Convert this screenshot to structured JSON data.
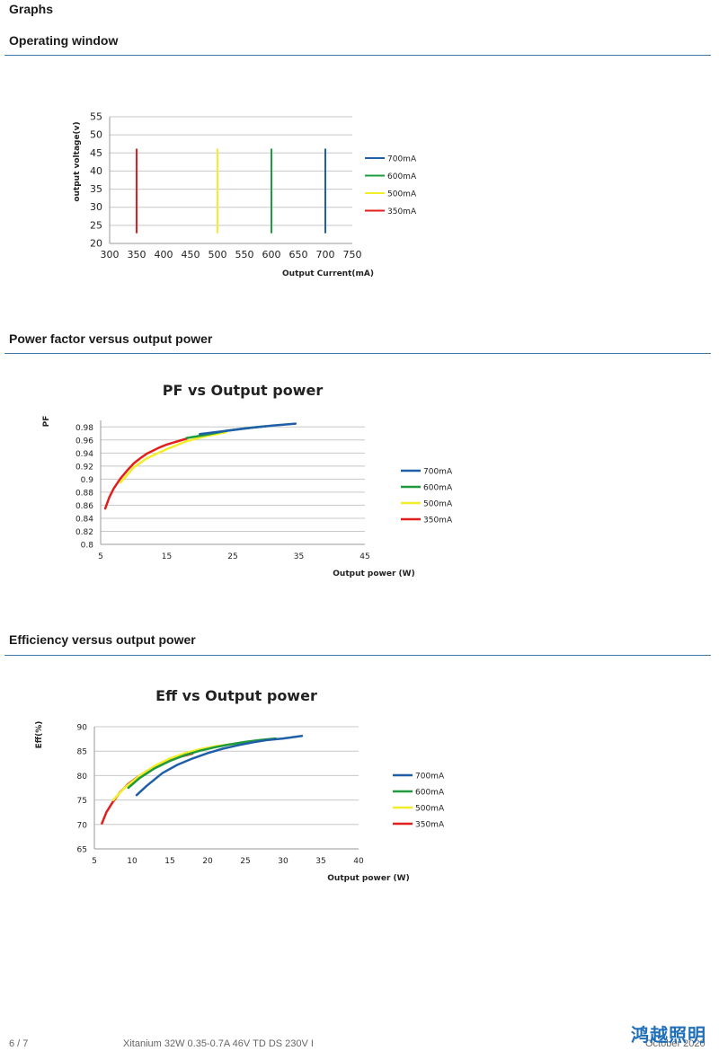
{
  "page": {
    "heading": "Graphs"
  },
  "sections": [
    {
      "title": "Operating window"
    },
    {
      "title": "Power factor versus output power"
    },
    {
      "title": "Efficiency versus output power"
    }
  ],
  "chart_data": [
    {
      "type": "line",
      "title": "",
      "xlabel": "Output Current(mA)",
      "ylabel": "output voltage(v)",
      "xlim": [
        300,
        750
      ],
      "ylim": [
        20,
        55
      ],
      "xticks": [
        300,
        350,
        400,
        450,
        500,
        550,
        600,
        650,
        700,
        750
      ],
      "yticks": [
        20,
        25,
        30,
        35,
        40,
        45,
        50,
        55
      ],
      "grid": true,
      "legend": "right",
      "series": [
        {
          "name": "700mA",
          "color": "#1f5fa8",
          "x": [
            700,
            700
          ],
          "y": [
            23,
            46
          ]
        },
        {
          "name": "600mA",
          "color": "#1f9a3c",
          "x": [
            600,
            600
          ],
          "y": [
            23,
            46
          ]
        },
        {
          "name": "500mA",
          "color": "#f2ee2a",
          "x": [
            500,
            500
          ],
          "y": [
            23,
            46
          ]
        },
        {
          "name": "350mA",
          "color": "#e0201c",
          "x": [
            350,
            350
          ],
          "y": [
            23,
            46
          ]
        }
      ]
    },
    {
      "type": "line",
      "title": "PF vs Output power",
      "xlabel": "Output power (W)",
      "ylabel": "PF",
      "xlim": [
        5,
        45
      ],
      "ylim": [
        0.8,
        0.99
      ],
      "xticks": [
        5,
        15,
        25,
        35,
        45
      ],
      "yticks": [
        0.8,
        0.82,
        0.84,
        0.86,
        0.88,
        0.9,
        0.92,
        0.94,
        0.96,
        0.98
      ],
      "grid": true,
      "legend": "right",
      "series": [
        {
          "name": "700mA",
          "color": "#1f5fa8",
          "x": [
            20,
            24,
            28,
            31,
            34.5
          ],
          "y": [
            0.969,
            0.974,
            0.979,
            0.982,
            0.985
          ]
        },
        {
          "name": "600mA",
          "color": "#1f9a3c",
          "x": [
            18,
            21,
            24,
            27,
            30
          ],
          "y": [
            0.963,
            0.968,
            0.974,
            0.978,
            0.981
          ]
        },
        {
          "name": "500mA",
          "color": "#f2ee2a",
          "x": [
            8,
            10,
            12,
            15,
            18,
            21,
            24
          ],
          "y": [
            0.895,
            0.918,
            0.932,
            0.946,
            0.958,
            0.966,
            0.972
          ]
        },
        {
          "name": "350mA",
          "color": "#e0201c",
          "x": [
            5.7,
            6.3,
            7,
            8,
            9,
            10,
            11,
            12,
            13,
            14,
            15,
            16,
            17,
            18
          ],
          "y": [
            0.855,
            0.872,
            0.886,
            0.901,
            0.913,
            0.924,
            0.932,
            0.939,
            0.944,
            0.949,
            0.953,
            0.956,
            0.959,
            0.962
          ]
        }
      ]
    },
    {
      "type": "line",
      "title": "Eff vs Output power",
      "xlabel": "Output power (W)",
      "ylabel": "Eff(%)",
      "xlim": [
        5,
        40
      ],
      "ylim": [
        65,
        90
      ],
      "xticks": [
        5,
        10,
        15,
        20,
        25,
        30,
        35,
        40
      ],
      "yticks": [
        65,
        70,
        75,
        80,
        85,
        90
      ],
      "grid": true,
      "legend": "right",
      "series": [
        {
          "name": "700mA",
          "color": "#1f5fa8",
          "x": [
            10.6,
            12,
            14,
            16,
            18,
            20,
            22,
            24,
            26,
            28,
            30,
            32.5
          ],
          "y": [
            76,
            78,
            80.5,
            82.2,
            83.5,
            84.6,
            85.5,
            86.2,
            86.8,
            87.3,
            87.6,
            88.1
          ]
        },
        {
          "name": "600mA",
          "color": "#1f9a3c",
          "x": [
            9.5,
            11,
            13,
            15,
            17,
            19,
            21,
            23,
            25,
            27,
            29
          ],
          "y": [
            77.5,
            79.5,
            81.5,
            83,
            84.2,
            85.1,
            85.8,
            86.4,
            86.9,
            87.3,
            87.6
          ]
        },
        {
          "name": "500mA",
          "color": "#f2ee2a",
          "x": [
            7.5,
            9,
            11,
            13,
            15,
            17,
            19,
            21,
            23,
            24.5
          ],
          "y": [
            75,
            77.5,
            80,
            82,
            83.5,
            84.6,
            85.4,
            86,
            86.4,
            86.7
          ]
        },
        {
          "name": "350mA",
          "color": "#e0201c",
          "x": [
            6,
            6.6,
            7.4,
            8.4,
            9.5,
            10.8,
            12,
            13.5,
            15,
            16.5,
            18
          ],
          "y": [
            70.2,
            72.5,
            74.5,
            76.6,
            78.3,
            79.8,
            81,
            82.2,
            83.1,
            83.9,
            84.5
          ]
        }
      ]
    }
  ],
  "footer": {
    "page_number": "6 / 7",
    "product": "Xitanium 32W 0.35-0.7A 46V TD DS 230V I",
    "date": "October 2020",
    "brand": "鸿越照明"
  }
}
